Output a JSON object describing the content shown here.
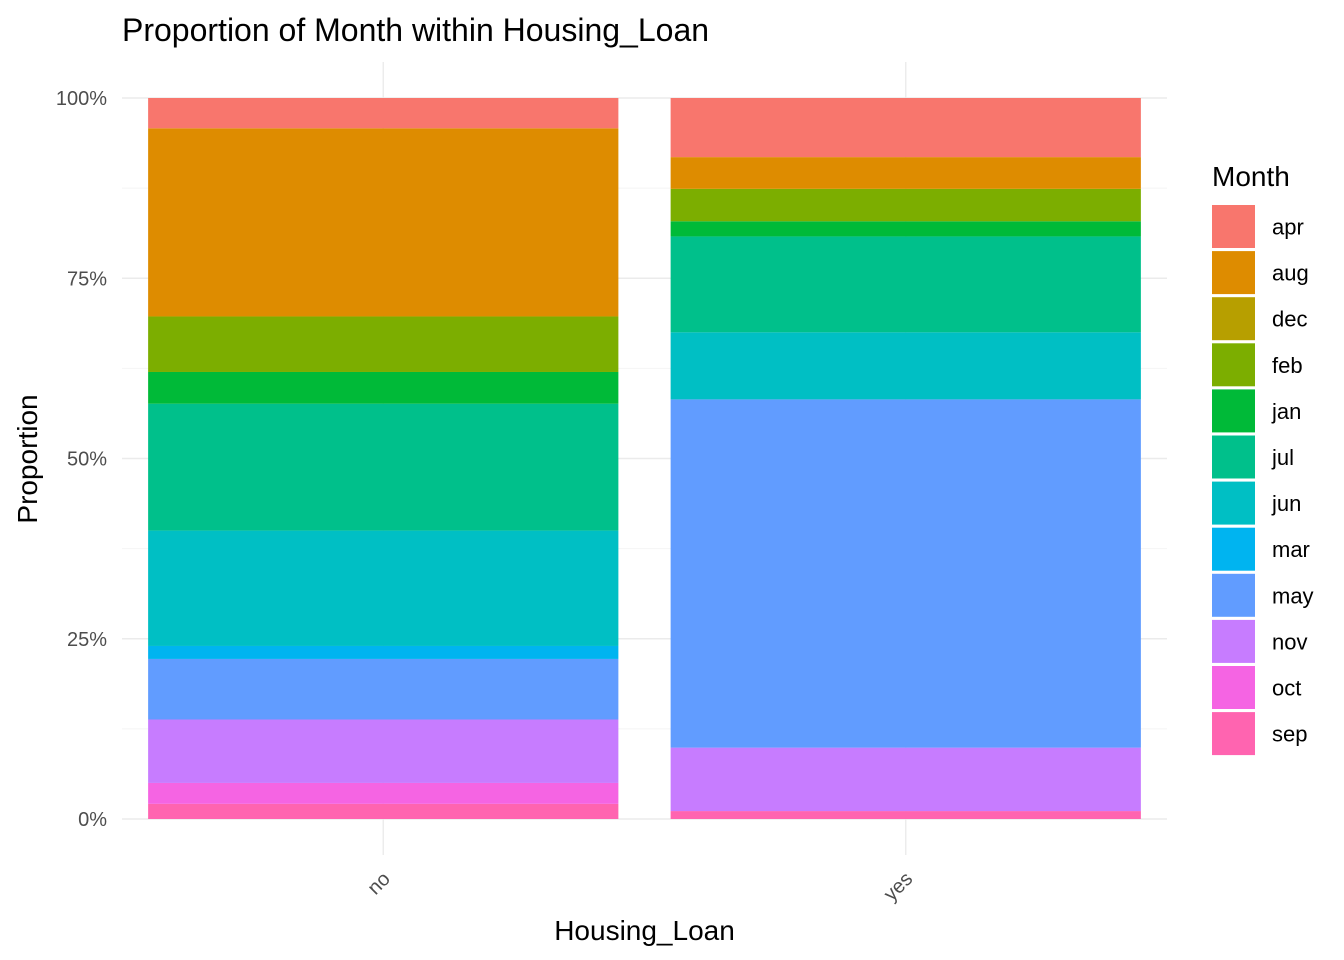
{
  "chart_data": {
    "type": "bar",
    "stacked": "fill",
    "title": "Proportion of Month within Housing_Loan",
    "xlabel": "Housing_Loan",
    "ylabel": "Proportion",
    "categories": [
      "no",
      "yes"
    ],
    "ylim": [
      0,
      1
    ],
    "yticks": [
      0,
      0.25,
      0.5,
      0.75,
      1.0
    ],
    "ytick_labels": [
      "0%",
      "25%",
      "50%",
      "75%",
      "100%"
    ],
    "grid": true,
    "legend": {
      "title": "Month",
      "position": "right"
    },
    "series": [
      {
        "name": "apr",
        "color": "#F8766D",
        "values": [
          0.042,
          0.082
        ]
      },
      {
        "name": "aug",
        "color": "#DE8C00",
        "values": [
          0.261,
          0.044
        ]
      },
      {
        "name": "dec",
        "color": "#B79F00",
        "values": [
          0.0,
          0.0
        ]
      },
      {
        "name": "feb",
        "color": "#7CAE00",
        "values": [
          0.077,
          0.045
        ]
      },
      {
        "name": "jan",
        "color": "#00BA38",
        "values": [
          0.044,
          0.021
        ]
      },
      {
        "name": "jul",
        "color": "#00C08B",
        "values": [
          0.176,
          0.133
        ]
      },
      {
        "name": "jun",
        "color": "#00BFC4",
        "values": [
          0.16,
          0.093
        ]
      },
      {
        "name": "mar",
        "color": "#00B4F0",
        "values": [
          0.018,
          0.0
        ]
      },
      {
        "name": "may",
        "color": "#619CFF",
        "values": [
          0.084,
          0.483
        ]
      },
      {
        "name": "nov",
        "color": "#C77CFF",
        "values": [
          0.088,
          0.088
        ]
      },
      {
        "name": "oct",
        "color": "#F564E3",
        "values": [
          0.029,
          0.0
        ]
      },
      {
        "name": "sep",
        "color": "#FF64B0",
        "values": [
          0.021,
          0.011
        ]
      }
    ]
  }
}
